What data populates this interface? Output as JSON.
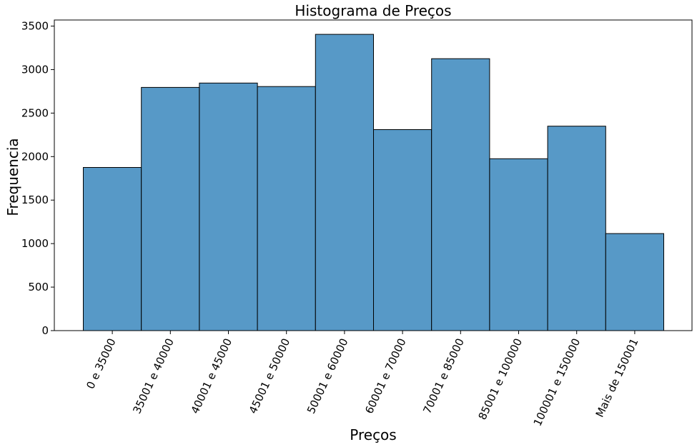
{
  "chart_data": {
    "type": "bar",
    "title": "Histograma de Preços",
    "xlabel": "Preços",
    "ylabel": "Frequencia",
    "categories": [
      "0 e 35000",
      "35001 e 40000",
      "40001 e 45000",
      "45001 e 50000",
      "50001 e 60000",
      "60001 e 70000",
      "70001 e 85000",
      "85001 e 100000",
      "100001 e 150000",
      "Mais de 150001"
    ],
    "values": [
      1875,
      2795,
      2845,
      2805,
      3405,
      2310,
      3125,
      1975,
      2350,
      1115
    ],
    "ylim": [
      0,
      3570
    ],
    "yticks": [
      0,
      500,
      1000,
      1500,
      2000,
      2500,
      3000,
      3500
    ],
    "grid": false,
    "bar_color": "#5799c7",
    "edge_color": "#000000"
  }
}
